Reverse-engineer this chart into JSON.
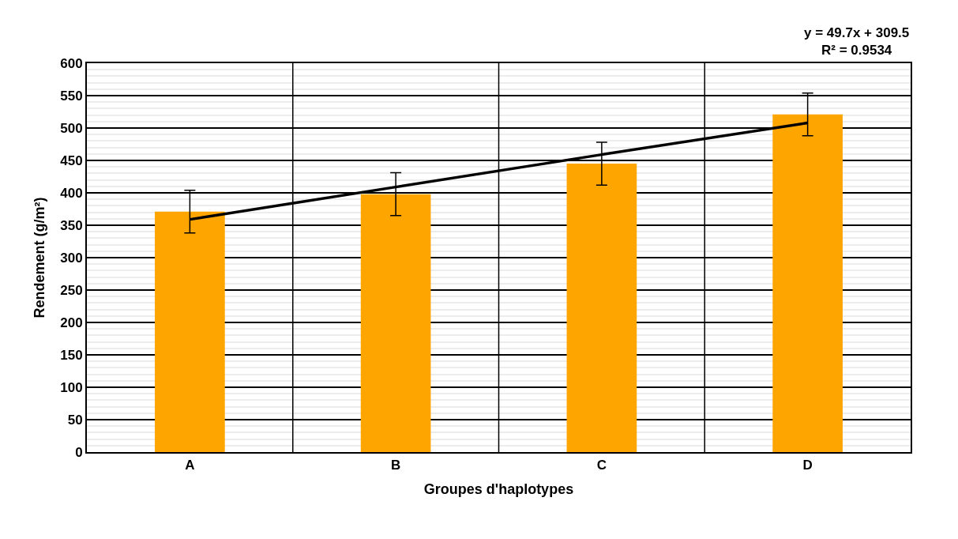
{
  "chart_data": {
    "type": "bar",
    "xlabel": "Groupes d'haplotypes",
    "ylabel": "Rendement (g/m²)",
    "categories": [
      "A",
      "B",
      "C",
      "D"
    ],
    "series": [
      {
        "color": "#ffa500",
        "values": [
          371,
          398,
          445,
          521
        ],
        "errors": [
          33,
          33,
          33,
          33
        ]
      },
      {
        "type": "line",
        "color": "#000000",
        "values": [
          359,
          409,
          459,
          508
        ]
      }
    ],
    "annotations": [
      "y = 49.7x + 309.5",
      "R² = 0.9534"
    ],
    "ylim": [
      0,
      600
    ],
    "yticks": [
      0,
      50,
      100,
      150,
      200,
      250,
      300,
      350,
      400,
      450,
      500,
      550,
      600
    ],
    "grid": true,
    "legend": false,
    "marker": "none",
    "line_style": "solid"
  }
}
